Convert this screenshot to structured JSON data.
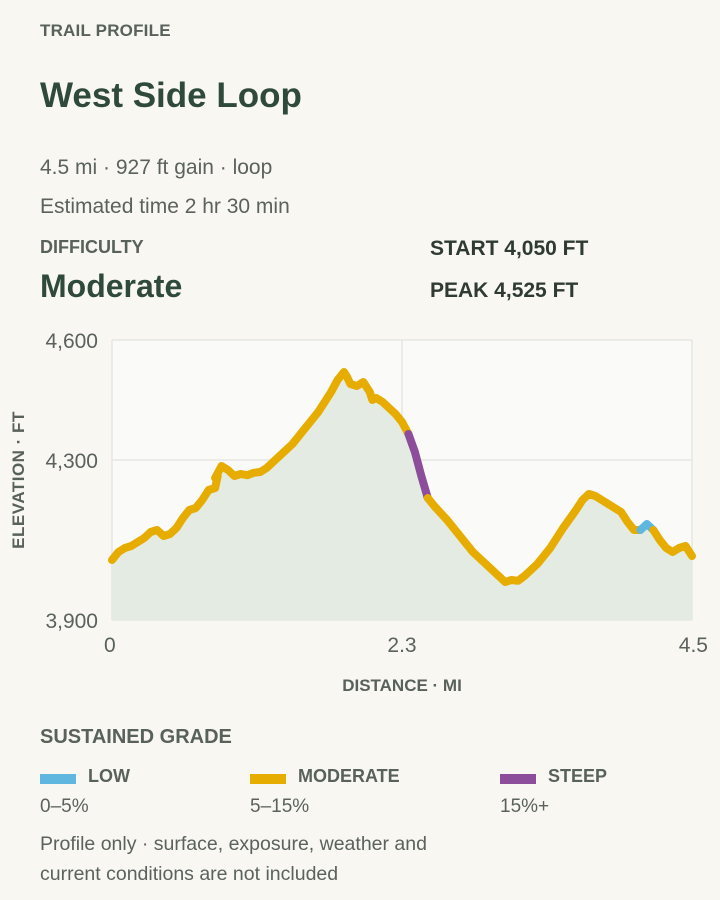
{
  "header": {
    "kicker": "TRAIL PROFILE",
    "title": "West Side Loop",
    "meta_line1": "4.5 mi · 927 ft gain · loop",
    "meta_line2": "Estimated time 2 hr 30 min"
  },
  "difficulty": {
    "label": "DIFFICULTY",
    "value": "Moderate"
  },
  "stats": {
    "start": "START 4,050 FT",
    "peak": "PEAK 4,525 FT"
  },
  "chart_data": {
    "type": "line",
    "xlabel": "DISTANCE · MI",
    "ylabel": "ELEVATION · FT",
    "xlim": [
      0,
      4.5
    ],
    "ylim": [
      3900,
      4600
    ],
    "x_ticks": [
      {
        "value": 0,
        "label": "0"
      },
      {
        "value": 2.25,
        "label": "2.3"
      },
      {
        "value": 4.5,
        "label": "4.5"
      }
    ],
    "y_ticks": [
      {
        "value": 3900,
        "label": "3,900"
      },
      {
        "value": 4300,
        "label": "4,300"
      },
      {
        "value": 4600,
        "label": "4,600"
      }
    ],
    "grid": true,
    "points": [
      [
        0.0,
        4050
      ],
      [
        0.05,
        4070
      ],
      [
        0.1,
        4080
      ],
      [
        0.15,
        4085
      ],
      [
        0.2,
        4095
      ],
      [
        0.25,
        4105
      ],
      [
        0.3,
        4120
      ],
      [
        0.35,
        4125
      ],
      [
        0.4,
        4110
      ],
      [
        0.45,
        4115
      ],
      [
        0.5,
        4130
      ],
      [
        0.55,
        4155
      ],
      [
        0.6,
        4175
      ],
      [
        0.65,
        4180
      ],
      [
        0.7,
        4200
      ],
      [
        0.75,
        4225
      ],
      [
        0.8,
        4230
      ],
      [
        0.82,
        4260
      ],
      [
        0.8,
        4255
      ],
      [
        0.85,
        4285
      ],
      [
        0.9,
        4275
      ],
      [
        0.95,
        4260
      ],
      [
        1.0,
        4265
      ],
      [
        1.05,
        4262
      ],
      [
        1.1,
        4268
      ],
      [
        1.15,
        4270
      ],
      [
        1.2,
        4280
      ],
      [
        1.3,
        4310
      ],
      [
        1.4,
        4340
      ],
      [
        1.5,
        4380
      ],
      [
        1.6,
        4420
      ],
      [
        1.7,
        4470
      ],
      [
        1.75,
        4500
      ],
      [
        1.8,
        4520
      ],
      [
        1.82,
        4510
      ],
      [
        1.85,
        4490
      ],
      [
        1.9,
        4485
      ],
      [
        1.95,
        4495
      ],
      [
        1.98,
        4480
      ],
      [
        2.0,
        4470
      ],
      [
        2.02,
        4450
      ],
      [
        2.05,
        4455
      ],
      [
        2.1,
        4445
      ],
      [
        2.15,
        4430
      ],
      [
        2.2,
        4415
      ],
      [
        2.25,
        4395
      ],
      [
        2.3,
        4365
      ],
      [
        2.35,
        4320
      ],
      [
        2.4,
        4260
      ],
      [
        2.45,
        4205
      ],
      [
        2.5,
        4185
      ],
      [
        2.6,
        4150
      ],
      [
        2.7,
        4110
      ],
      [
        2.8,
        4070
      ],
      [
        2.9,
        4040
      ],
      [
        3.0,
        4010
      ],
      [
        3.05,
        3995
      ],
      [
        3.1,
        4000
      ],
      [
        3.15,
        3998
      ],
      [
        3.2,
        4010
      ],
      [
        3.3,
        4040
      ],
      [
        3.4,
        4080
      ],
      [
        3.5,
        4130
      ],
      [
        3.6,
        4175
      ],
      [
        3.65,
        4200
      ],
      [
        3.7,
        4215
      ],
      [
        3.75,
        4210
      ],
      [
        3.8,
        4200
      ],
      [
        3.85,
        4190
      ],
      [
        3.9,
        4180
      ],
      [
        3.95,
        4170
      ],
      [
        4.0,
        4145
      ],
      [
        4.05,
        4125
      ],
      [
        4.1,
        4125
      ],
      [
        4.15,
        4140
      ],
      [
        4.2,
        4125
      ],
      [
        4.25,
        4100
      ],
      [
        4.3,
        4080
      ],
      [
        4.35,
        4070
      ],
      [
        4.4,
        4080
      ],
      [
        4.45,
        4085
      ],
      [
        4.5,
        4060
      ]
    ],
    "segments": [
      {
        "grade": "moderate",
        "from": 0.0,
        "to": 2.3
      },
      {
        "grade": "steep",
        "from": 2.3,
        "to": 2.45
      },
      {
        "grade": "moderate",
        "from": 2.45,
        "to": 4.1
      },
      {
        "grade": "low",
        "from": 4.1,
        "to": 4.2
      },
      {
        "grade": "moderate",
        "from": 4.2,
        "to": 4.5
      }
    ],
    "colors": {
      "low": "#5fb7e0",
      "moderate": "#e6ac00",
      "steep": "#8c4d9a",
      "fill": "#e4ebe3",
      "grid": "#e6e6e1",
      "plot_bg": "#fafaf8"
    }
  },
  "legend": {
    "title": "SUSTAINED GRADE",
    "items": [
      {
        "label": "LOW",
        "range": "0–5%",
        "color": "#5fb7e0"
      },
      {
        "label": "MODERATE",
        "range": "5–15%",
        "color": "#e6ac00"
      },
      {
        "label": "STEEP",
        "range": "15%+",
        "color": "#8c4d9a"
      }
    ]
  },
  "footnote": {
    "line1": "Profile only · surface, exposure, weather and",
    "line2": "current conditions are not included"
  }
}
